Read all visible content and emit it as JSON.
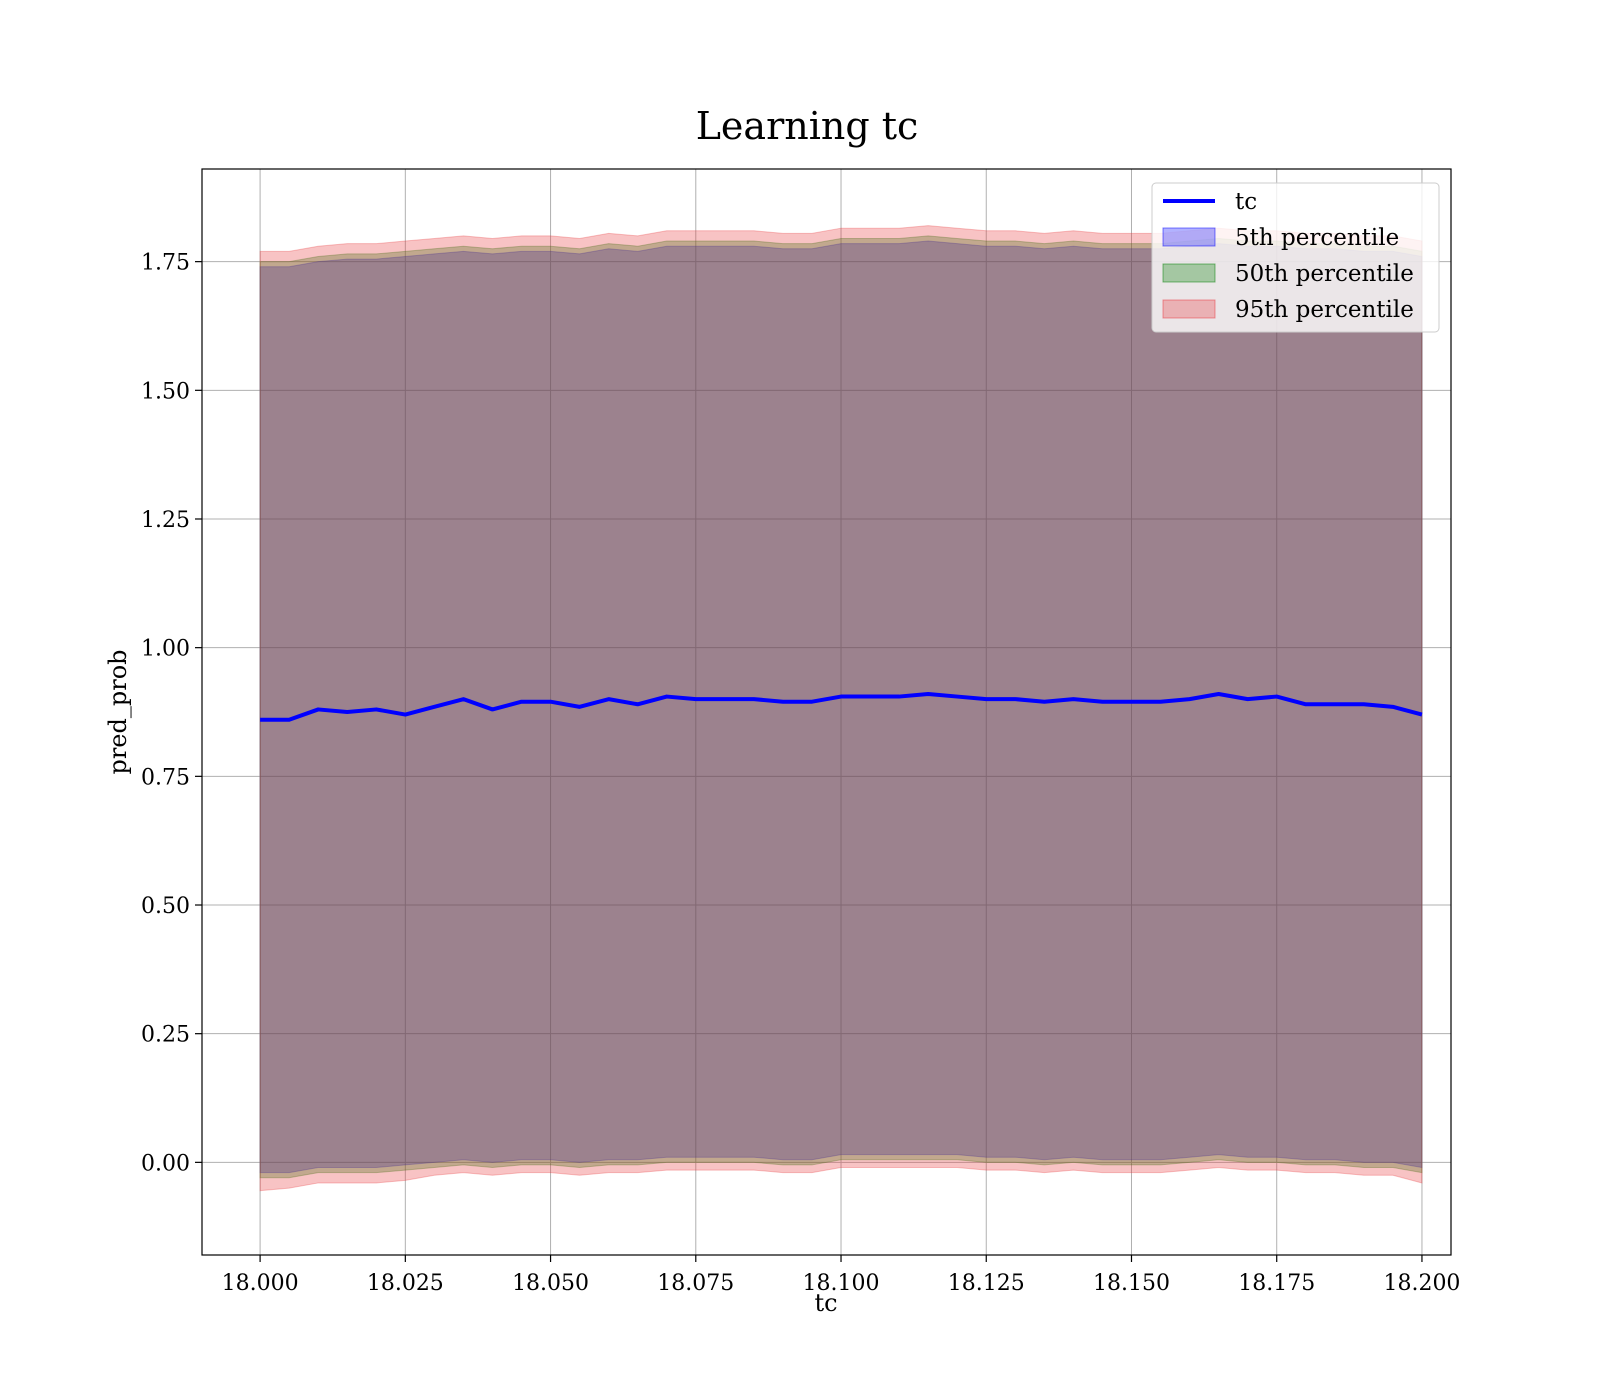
{
  "chart_data": {
    "type": "area",
    "title": "Learning tc",
    "xlabel": "tc",
    "ylabel": "pred_prob",
    "xlim": [
      17.99,
      18.205
    ],
    "ylim": [
      -0.18,
      1.93
    ],
    "xticks": [
      "18.000",
      "18.025",
      "18.050",
      "18.075",
      "18.100",
      "18.125",
      "18.150",
      "18.175",
      "18.200"
    ],
    "xtick_values": [
      18.0,
      18.025,
      18.05,
      18.075,
      18.1,
      18.125,
      18.15,
      18.175,
      18.2
    ],
    "yticks": [
      "0.00",
      "0.25",
      "0.50",
      "0.75",
      "1.00",
      "1.25",
      "1.50",
      "1.75"
    ],
    "ytick_values": [
      0.0,
      0.25,
      0.5,
      0.75,
      1.0,
      1.25,
      1.5,
      1.75
    ],
    "grid": true,
    "legend_position": "top-right",
    "x": [
      18.0,
      18.005,
      18.01,
      18.015,
      18.02,
      18.025,
      18.03,
      18.035,
      18.04,
      18.045,
      18.05,
      18.055,
      18.06,
      18.065,
      18.07,
      18.075,
      18.08,
      18.085,
      18.09,
      18.095,
      18.1,
      18.105,
      18.11,
      18.115,
      18.12,
      18.125,
      18.13,
      18.135,
      18.14,
      18.145,
      18.15,
      18.155,
      18.16,
      18.165,
      18.17,
      18.175,
      18.18,
      18.185,
      18.19,
      18.195,
      18.2
    ],
    "series": [
      {
        "name": "tc",
        "kind": "line",
        "color": "#0000ff",
        "values": [
          0.86,
          0.86,
          0.88,
          0.875,
          0.88,
          0.87,
          0.885,
          0.9,
          0.88,
          0.895,
          0.895,
          0.885,
          0.9,
          0.89,
          0.905,
          0.9,
          0.9,
          0.9,
          0.895,
          0.895,
          0.905,
          0.905,
          0.905,
          0.91,
          0.905,
          0.9,
          0.9,
          0.895,
          0.9,
          0.895,
          0.895,
          0.895,
          0.9,
          0.91,
          0.9,
          0.905,
          0.89,
          0.89,
          0.89,
          0.885,
          0.87
        ]
      },
      {
        "name": "5th percentile",
        "kind": "band",
        "color": "#0000ff",
        "lower": [
          -0.02,
          -0.02,
          -0.01,
          -0.01,
          -0.01,
          -0.005,
          0.0,
          0.005,
          0.0,
          0.005,
          0.005,
          0.0,
          0.005,
          0.005,
          0.01,
          0.01,
          0.01,
          0.01,
          0.005,
          0.005,
          0.015,
          0.015,
          0.015,
          0.015,
          0.015,
          0.01,
          0.01,
          0.005,
          0.01,
          0.005,
          0.005,
          0.005,
          0.01,
          0.015,
          0.01,
          0.01,
          0.005,
          0.005,
          0.0,
          0.0,
          -0.01
        ],
        "upper": [
          1.74,
          1.74,
          1.75,
          1.755,
          1.755,
          1.76,
          1.765,
          1.77,
          1.765,
          1.77,
          1.77,
          1.765,
          1.775,
          1.77,
          1.78,
          1.78,
          1.78,
          1.78,
          1.775,
          1.775,
          1.785,
          1.785,
          1.785,
          1.79,
          1.785,
          1.78,
          1.78,
          1.775,
          1.78,
          1.775,
          1.775,
          1.775,
          1.78,
          1.785,
          1.78,
          1.78,
          1.775,
          1.775,
          1.77,
          1.77,
          1.76
        ]
      },
      {
        "name": "50th percentile",
        "kind": "band",
        "color": "#008000",
        "lower": [
          -0.03,
          -0.03,
          -0.02,
          -0.02,
          -0.02,
          -0.015,
          -0.01,
          -0.005,
          -0.01,
          -0.005,
          -0.005,
          -0.01,
          -0.005,
          -0.005,
          0.0,
          0.0,
          0.0,
          0.0,
          -0.005,
          -0.005,
          0.005,
          0.005,
          0.005,
          0.005,
          0.005,
          0.0,
          0.0,
          -0.005,
          0.0,
          -0.005,
          -0.005,
          -0.005,
          0.0,
          0.005,
          0.0,
          0.0,
          -0.005,
          -0.005,
          -0.01,
          -0.01,
          -0.02
        ],
        "upper": [
          1.75,
          1.75,
          1.76,
          1.765,
          1.765,
          1.77,
          1.775,
          1.78,
          1.775,
          1.78,
          1.78,
          1.775,
          1.785,
          1.78,
          1.79,
          1.79,
          1.79,
          1.79,
          1.785,
          1.785,
          1.795,
          1.795,
          1.795,
          1.8,
          1.795,
          1.79,
          1.79,
          1.785,
          1.79,
          1.785,
          1.785,
          1.785,
          1.79,
          1.795,
          1.79,
          1.79,
          1.785,
          1.785,
          1.78,
          1.78,
          1.77
        ]
      },
      {
        "name": "95th percentile",
        "kind": "band",
        "color": "#e8383d",
        "lower": [
          -0.055,
          -0.05,
          -0.04,
          -0.04,
          -0.04,
          -0.035,
          -0.025,
          -0.02,
          -0.025,
          -0.02,
          -0.02,
          -0.025,
          -0.02,
          -0.02,
          -0.015,
          -0.015,
          -0.015,
          -0.015,
          -0.02,
          -0.02,
          -0.01,
          -0.01,
          -0.01,
          -0.01,
          -0.01,
          -0.015,
          -0.015,
          -0.02,
          -0.015,
          -0.02,
          -0.02,
          -0.02,
          -0.015,
          -0.01,
          -0.015,
          -0.015,
          -0.02,
          -0.02,
          -0.025,
          -0.025,
          -0.04
        ],
        "upper": [
          1.77,
          1.77,
          1.78,
          1.785,
          1.785,
          1.79,
          1.795,
          1.8,
          1.795,
          1.8,
          1.8,
          1.795,
          1.805,
          1.8,
          1.81,
          1.81,
          1.81,
          1.81,
          1.805,
          1.805,
          1.815,
          1.815,
          1.815,
          1.82,
          1.815,
          1.81,
          1.81,
          1.805,
          1.81,
          1.805,
          1.805,
          1.805,
          1.81,
          1.815,
          1.81,
          1.81,
          1.805,
          1.805,
          1.8,
          1.8,
          1.79
        ]
      }
    ]
  }
}
